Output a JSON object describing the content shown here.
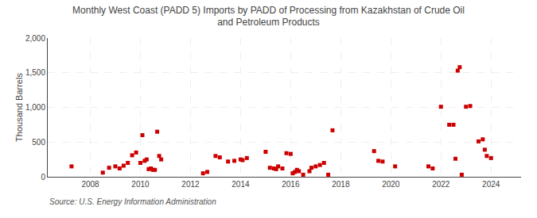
{
  "chart_data": {
    "type": "scatter",
    "title": "Monthly West Coast (PADD 5) Imports by PADD of Processing from Kazakhstan of Crude Oil\nand Petroleum Products",
    "ylabel": "Thousand Barrels",
    "annotations": [
      "Source: U.S. Energy Information Administration"
    ],
    "color": "#cc0000",
    "marker": "square",
    "grid": true,
    "xlim": [
      2006.3,
      2025.2
    ],
    "xticks": [
      2008,
      2010,
      2012,
      2014,
      2016,
      2018,
      2020,
      2022,
      2024
    ],
    "ylim": [
      0,
      2000
    ],
    "yticks": [
      0,
      500,
      {
        "value": 1000,
        "label": "1,000"
      },
      {
        "value": 1500,
        "label": "1,500"
      },
      {
        "value": 2000,
        "label": "2,000"
      }
    ],
    "x": [
      2007.25,
      2008.5,
      2008.75,
      2009.0,
      2009.17,
      2009.33,
      2009.5,
      2009.67,
      2009.83,
      2010.0,
      2010.08,
      2010.17,
      2010.25,
      2010.33,
      2010.42,
      2010.5,
      2010.58,
      2010.67,
      2010.75,
      2010.83,
      2012.5,
      2012.67,
      2013.0,
      2013.17,
      2013.5,
      2013.75,
      2014.0,
      2014.08,
      2014.25,
      2015.0,
      2015.17,
      2015.33,
      2015.42,
      2015.5,
      2015.67,
      2015.83,
      2016.0,
      2016.08,
      2016.17,
      2016.25,
      2016.33,
      2016.5,
      2016.75,
      2016.83,
      2017.0,
      2017.17,
      2017.33,
      2017.5,
      2017.67,
      2019.33,
      2019.5,
      2019.67,
      2020.17,
      2021.5,
      2021.67,
      2022.0,
      2022.33,
      2022.5,
      2022.58,
      2022.67,
      2022.75,
      2022.83,
      2023.0,
      2023.17,
      2023.5,
      2023.67,
      2023.75,
      2023.83,
      2024.0
    ],
    "values": [
      150,
      60,
      130,
      150,
      120,
      160,
      200,
      310,
      350,
      200,
      600,
      230,
      250,
      110,
      120,
      100,
      100,
      650,
      300,
      250,
      50,
      70,
      300,
      280,
      220,
      230,
      250,
      240,
      270,
      360,
      130,
      120,
      110,
      150,
      120,
      340,
      330,
      50,
      70,
      100,
      80,
      30,
      80,
      130,
      150,
      170,
      200,
      30,
      670,
      370,
      230,
      220,
      150,
      150,
      120,
      1010,
      750,
      750,
      260,
      1530,
      1580,
      30,
      1010,
      1020,
      510,
      540,
      390,
      300,
      270
    ]
  }
}
